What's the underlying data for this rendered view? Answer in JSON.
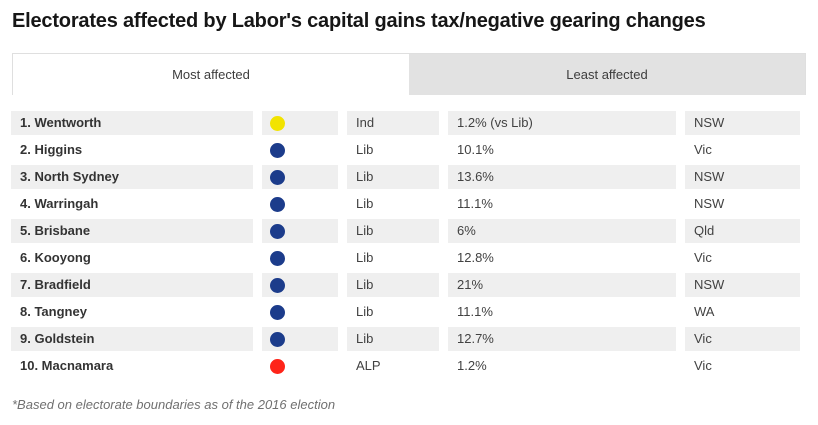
{
  "header": {
    "title": "Electorates affected by Labor's capital gains tax/negative gearing changes"
  },
  "tabs": {
    "most_affected": {
      "label": "Most affected",
      "active": true
    },
    "least_affected": {
      "label": "Least affected",
      "active": false
    }
  },
  "table": {
    "rows": [
      {
        "name": "1. Wentworth",
        "party": "Ind",
        "dot_color": "#f2e300",
        "impact": "1.2% (vs Lib)",
        "state": "NSW"
      },
      {
        "name": "2. Higgins",
        "party": "Lib",
        "dot_color": "#1c3c8b",
        "impact": "10.1%",
        "state": "Vic"
      },
      {
        "name": "3. North Sydney",
        "party": "Lib",
        "dot_color": "#1c3c8b",
        "impact": "13.6%",
        "state": "NSW"
      },
      {
        "name": "4. Warringah",
        "party": "Lib",
        "dot_color": "#1c3c8b",
        "impact": "11.1%",
        "state": "NSW"
      },
      {
        "name": "5. Brisbane",
        "party": "Lib",
        "dot_color": "#1c3c8b",
        "impact": "6%",
        "state": "Qld"
      },
      {
        "name": "6. Kooyong",
        "party": "Lib",
        "dot_color": "#1c3c8b",
        "impact": "12.8%",
        "state": "Vic"
      },
      {
        "name": "7. Bradfield",
        "party": "Lib",
        "dot_color": "#1c3c8b",
        "impact": "21%",
        "state": "NSW"
      },
      {
        "name": "8. Tangney",
        "party": "Lib",
        "dot_color": "#1c3c8b",
        "impact": "11.1%",
        "state": "WA"
      },
      {
        "name": "9. Goldstein",
        "party": "Lib",
        "dot_color": "#1c3c8b",
        "impact": "12.7%",
        "state": "Vic"
      },
      {
        "name": "10. Macnamara",
        "party": "ALP",
        "dot_color": "#fe2419",
        "impact": "1.2%",
        "state": "Vic"
      }
    ]
  },
  "footnote": {
    "text": "*Based on electorate boundaries as of the 2016 election"
  },
  "colors": {
    "lib_blue": "#1c3c8b",
    "alp_red": "#fe2419",
    "ind_yellow": "#f2e300",
    "row_alt_bg": "#efefef",
    "tab_inactive_bg": "#e2e2e2",
    "border": "#dfdfdf"
  }
}
